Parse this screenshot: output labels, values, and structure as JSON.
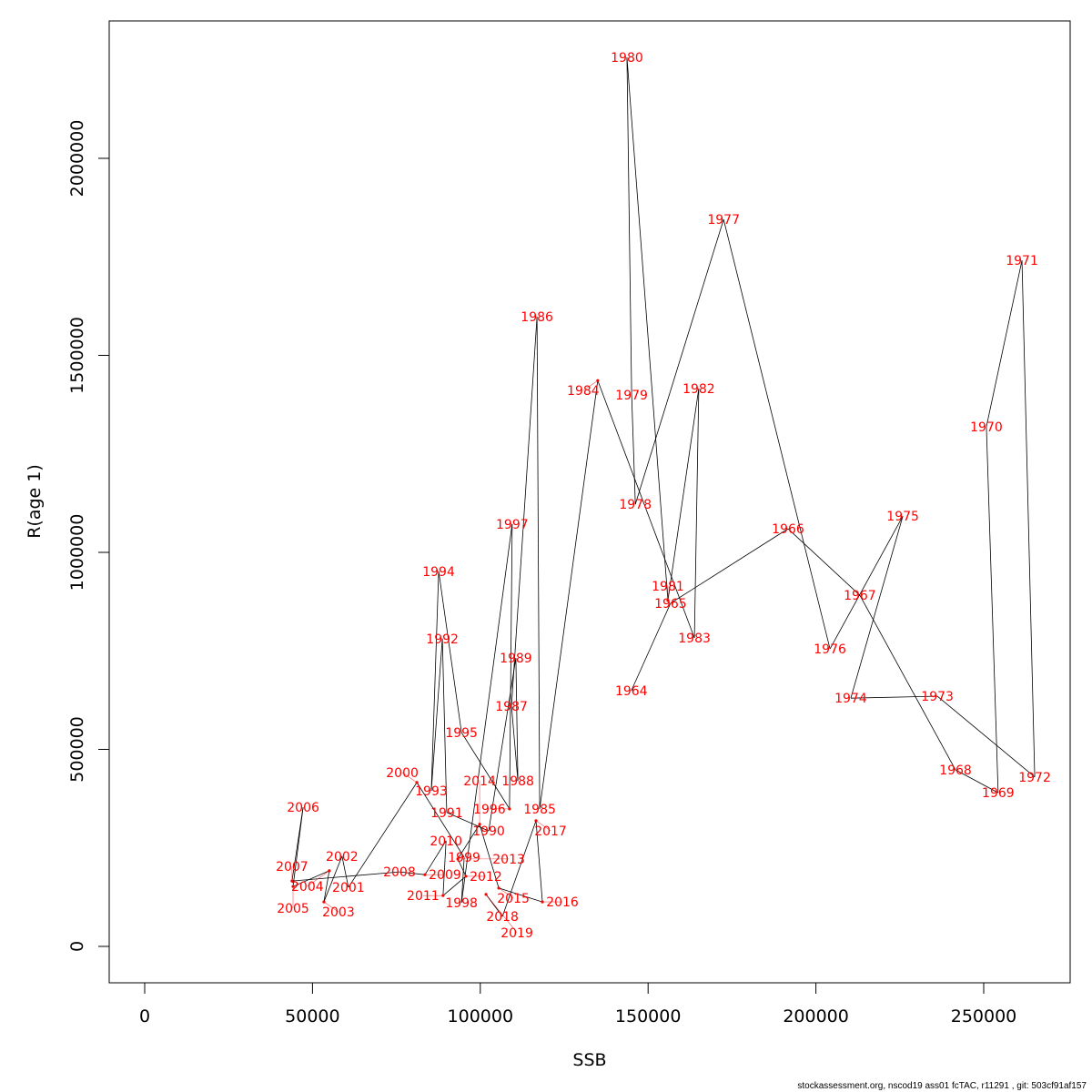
{
  "chart_data": {
    "type": "line",
    "title": "",
    "xlabel": "SSB",
    "ylabel": "R(age 1)",
    "xlim": [
      -10000,
      275000
    ],
    "ylim": [
      -90000,
      2345000
    ],
    "x_ticks": [
      0,
      50000,
      100000,
      150000,
      200000,
      250000
    ],
    "y_ticks": [
      0,
      500000,
      1000000,
      1500000,
      2000000
    ],
    "grid": false,
    "label_color": "#ff0000",
    "line_color": "#000000",
    "points": [
      {
        "year": "1964",
        "ssb": 145000,
        "r": 649000
      },
      {
        "year": "1965",
        "ssb": 156700,
        "r": 871000
      },
      {
        "year": "1966",
        "ssb": 191700,
        "r": 1060000
      },
      {
        "year": "1967",
        "ssb": 213100,
        "r": 891000
      },
      {
        "year": "1968",
        "ssb": 241600,
        "r": 448000
      },
      {
        "year": "1969",
        "ssb": 254300,
        "r": 390000
      },
      {
        "year": "1970",
        "ssb": 250800,
        "r": 1319000
      },
      {
        "year": "1971",
        "ssb": 261400,
        "r": 1741000
      },
      {
        "year": "1972",
        "ssb": 265200,
        "r": 430000
      },
      {
        "year": "1973",
        "ssb": 236200,
        "r": 635000
      },
      {
        "year": "1974",
        "ssb": 210400,
        "r": 630000
      },
      {
        "year": "1975",
        "ssb": 225900,
        "r": 1092000
      },
      {
        "year": "1976",
        "ssb": 204200,
        "r": 755000
      },
      {
        "year": "1977",
        "ssb": 172500,
        "r": 1845000
      },
      {
        "year": "1978",
        "ssb": 146200,
        "r": 1122000
      },
      {
        "year": "1979",
        "ssb": 145100,
        "r": 1400000
      },
      {
        "year": "1980",
        "ssb": 143700,
        "r": 2256000
      },
      {
        "year": "1981",
        "ssb": 155900,
        "r": 878000
      },
      {
        "year": "1982",
        "ssb": 165100,
        "r": 1416000
      },
      {
        "year": "1983",
        "ssb": 163800,
        "r": 783000
      },
      {
        "year": "1984",
        "ssb": 135000,
        "r": 1436000
      },
      {
        "year": "1985",
        "ssb": 117700,
        "r": 349000
      },
      {
        "year": "1986",
        "ssb": 116900,
        "r": 1598000
      },
      {
        "year": "1987",
        "ssb": 109300,
        "r": 610000
      },
      {
        "year": "1988",
        "ssb": 111200,
        "r": 420000
      },
      {
        "year": "1989",
        "ssb": 110600,
        "r": 732000
      },
      {
        "year": "1990",
        "ssb": 102500,
        "r": 293000
      },
      {
        "year": "1991",
        "ssb": 90000,
        "r": 340000
      },
      {
        "year": "1992",
        "ssb": 88700,
        "r": 781000
      },
      {
        "year": "1993",
        "ssb": 85400,
        "r": 395000
      },
      {
        "year": "1994",
        "ssb": 87600,
        "r": 952000
      },
      {
        "year": "1995",
        "ssb": 94400,
        "r": 543000
      },
      {
        "year": "1996",
        "ssb": 108700,
        "r": 349000
      },
      {
        "year": "1997",
        "ssb": 109500,
        "r": 1072000
      },
      {
        "year": "1998",
        "ssb": 94400,
        "r": 111000
      },
      {
        "year": "1999",
        "ssb": 95200,
        "r": 226000
      },
      {
        "year": "2000",
        "ssb": 81100,
        "r": 416000
      },
      {
        "year": "2001",
        "ssb": 60700,
        "r": 150000
      },
      {
        "year": "2002",
        "ssb": 58800,
        "r": 229000
      },
      {
        "year": "2003",
        "ssb": 53400,
        "r": 113000
      },
      {
        "year": "2004",
        "ssb": 55000,
        "r": 192000
      },
      {
        "year": "2005",
        "ssb": 44200,
        "r": 152000
      },
      {
        "year": "2006",
        "ssb": 47200,
        "r": 353000
      },
      {
        "year": "2007",
        "ssb": 43900,
        "r": 166000
      },
      {
        "year": "2008",
        "ssb": 75900,
        "r": 189000
      },
      {
        "year": "2009",
        "ssb": 83500,
        "r": 182000
      },
      {
        "year": "2010",
        "ssb": 89800,
        "r": 268000
      },
      {
        "year": "2011",
        "ssb": 88900,
        "r": 129000
      },
      {
        "year": "2012",
        "ssb": 95700,
        "r": 178000
      },
      {
        "year": "2013",
        "ssb": 93300,
        "r": 222000
      },
      {
        "year": "2014",
        "ssb": 99800,
        "r": 310000
      },
      {
        "year": "2015",
        "ssb": 105500,
        "r": 148000
      },
      {
        "year": "2016",
        "ssb": 118500,
        "r": 113000
      },
      {
        "year": "2017",
        "ssb": 116600,
        "r": 319000
      },
      {
        "year": "2018",
        "ssb": 106600,
        "r": 76000
      },
      {
        "year": "2019",
        "ssb": 101700,
        "r": 132000
      }
    ]
  },
  "footer": "stockassessment.org, nscod19 ass01 fcTAC, r11291 , git: 503cf91af157"
}
